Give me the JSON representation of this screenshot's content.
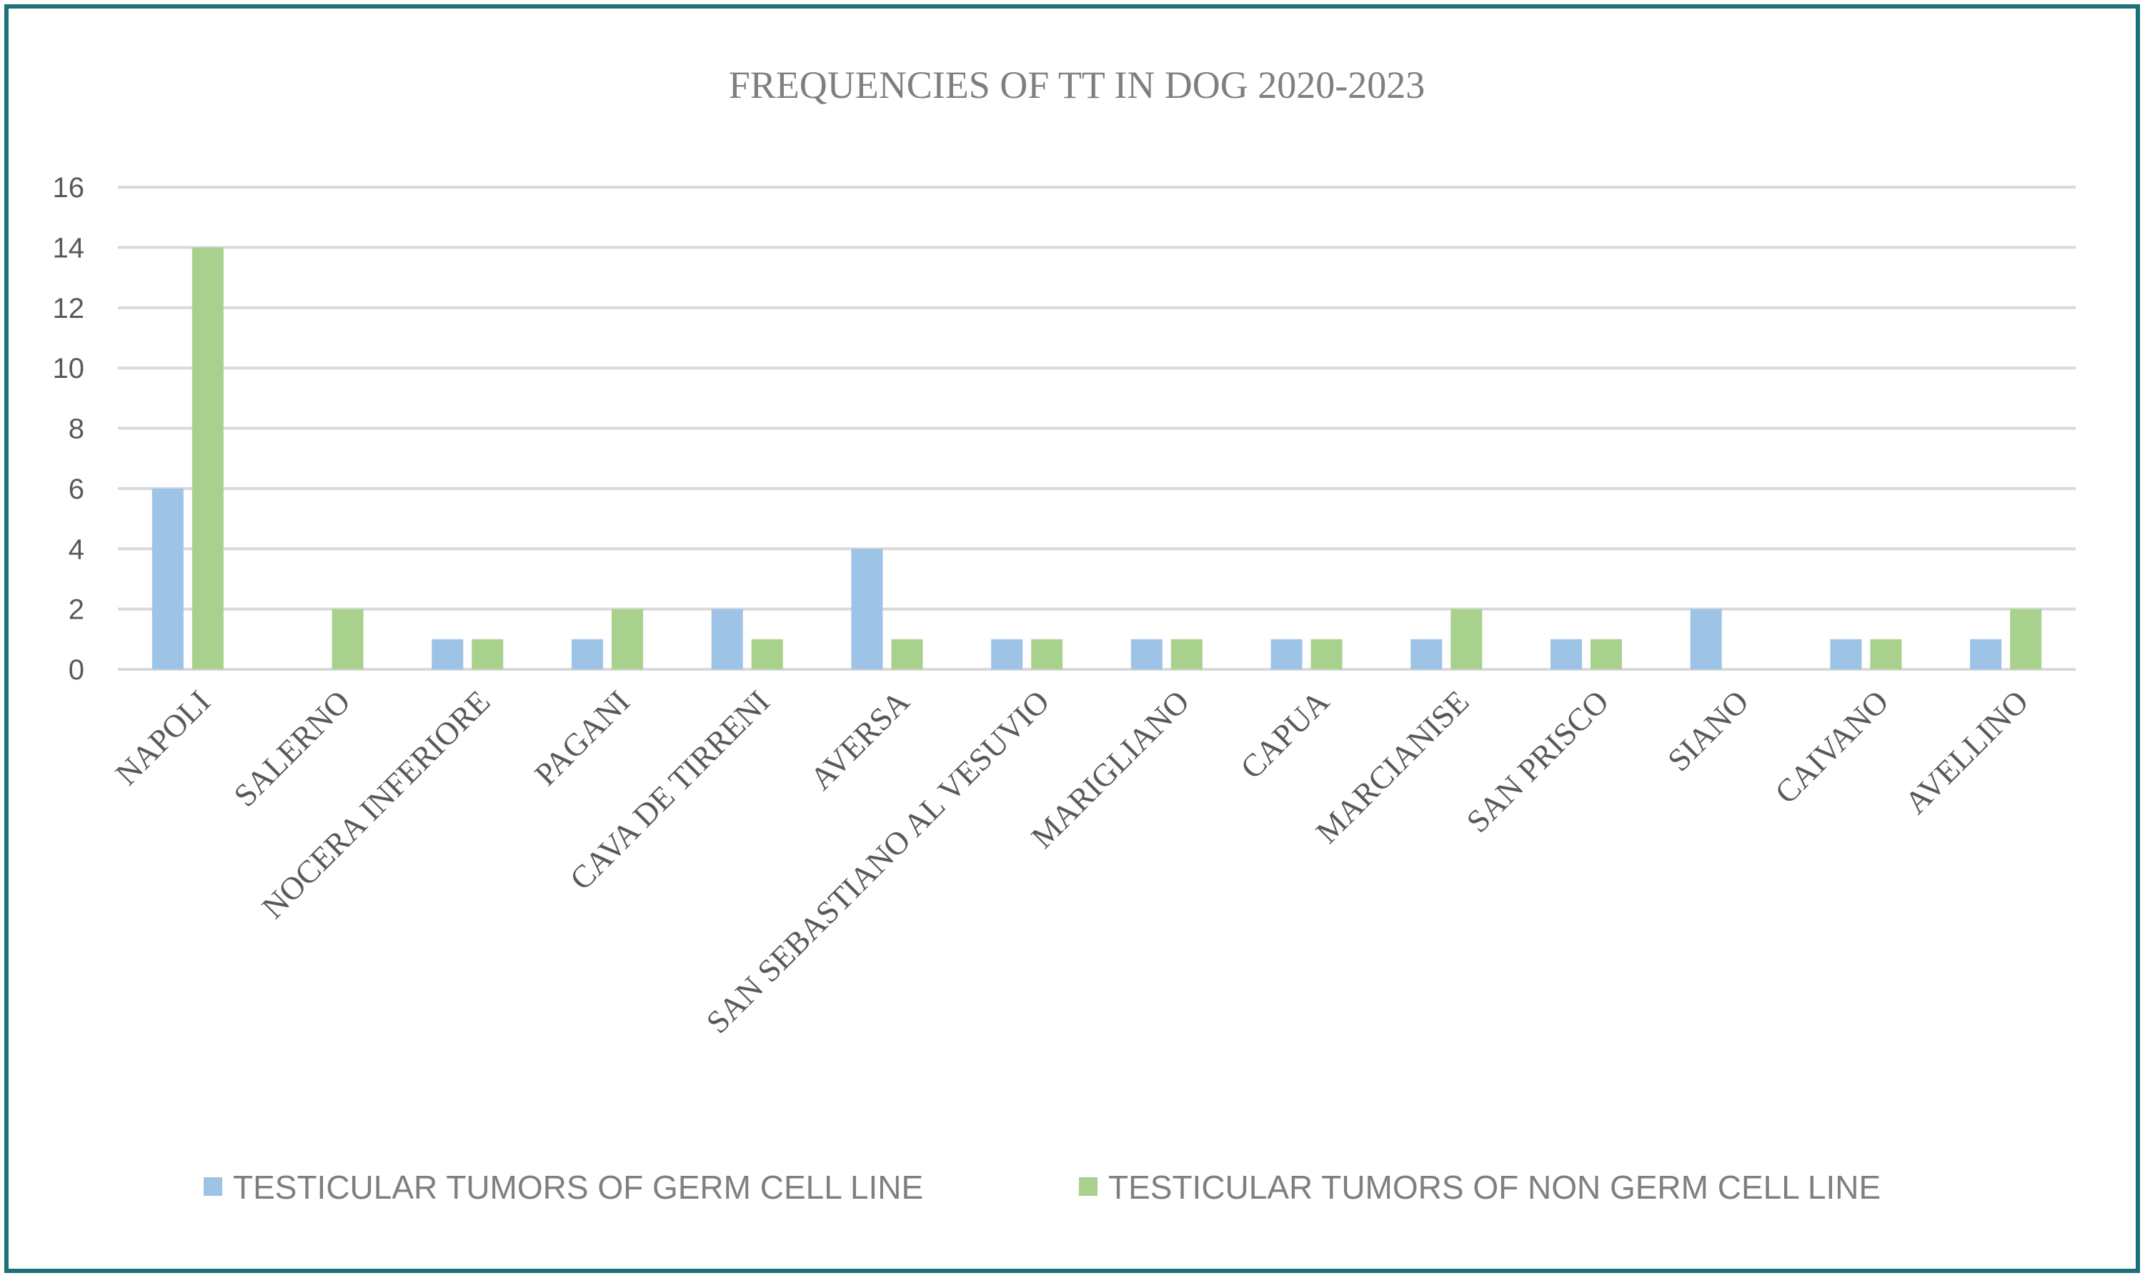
{
  "chart_data": {
    "type": "bar",
    "title": "FREQUENCIES OF TT IN DOG 2020-2023",
    "xlabel": "",
    "ylabel": "",
    "ylim": [
      0,
      16
    ],
    "yticks": [
      0,
      2,
      4,
      6,
      8,
      10,
      12,
      14,
      16
    ],
    "grid": true,
    "legend_position": "bottom",
    "categories": [
      "NAPOLI",
      "SALERNO",
      "NOCERA INFERIORE",
      "PAGANI",
      "CAVA DE TIRRENI",
      "AVERSA",
      "SAN SEBASTIANO AL VESUVIO",
      "MARIGLIANO",
      "CAPUA",
      "MARCIANISE",
      "SAN PRISCO",
      "SIANO",
      "CAIVANO",
      "AVELLINO"
    ],
    "series": [
      {
        "name": "TESTICULAR TUMORS OF GERM CELL LINE",
        "color": "#9dc3e6",
        "values": [
          6,
          0,
          1,
          1,
          2,
          4,
          1,
          1,
          1,
          1,
          1,
          2,
          1,
          1
        ]
      },
      {
        "name": "TESTICULAR TUMORS OF NON GERM CELL LINE",
        "color": "#a9d18e",
        "values": [
          14,
          2,
          1,
          2,
          1,
          1,
          1,
          1,
          1,
          2,
          1,
          0,
          1,
          2
        ]
      }
    ]
  }
}
